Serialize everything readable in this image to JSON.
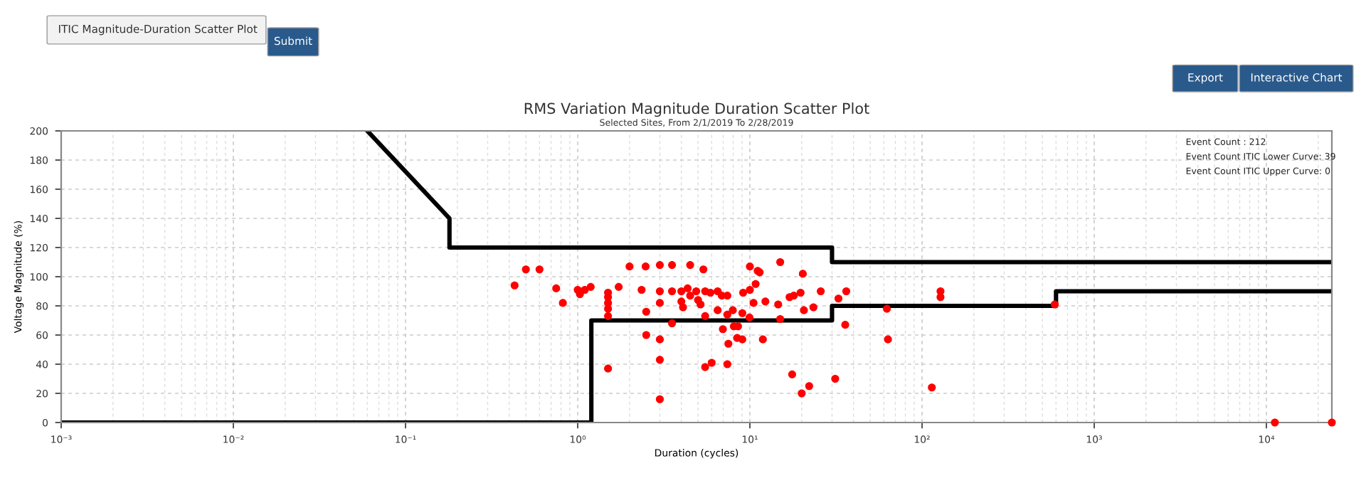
{
  "chart_data": {
    "type": "scatter",
    "title": "RMS Variation Magnitude Duration Scatter Plot",
    "subtitle": "Selected Sites, From 2/1/2019 To 2/28/2019",
    "xlabel": "Duration (cycles)",
    "ylabel": "Voltage Magnitude (%)",
    "annotations": [
      "ITIC Magnitude-Duration Scatter Plot",
      "Submit",
      "Export",
      "Interactive Chart",
      "Event Count : 212",
      "Event Count ITIC Lower Curve: 39",
      "Event Count ITIC Upper Curve: 0"
    ],
    "log": "x",
    "xlim": [
      0.001,
      24000
    ],
    "ylim": [
      0,
      200
    ],
    "xticks": [
      {
        "value": 0.001,
        "label": "10⁻³"
      },
      {
        "value": 0.01,
        "label": "10⁻²"
      },
      {
        "value": 0.1,
        "label": "10⁻¹"
      },
      {
        "value": 1,
        "label": "10⁰"
      },
      {
        "value": 10,
        "label": "10¹"
      },
      {
        "value": 100,
        "label": "10²"
      },
      {
        "value": 1000,
        "label": "10³"
      },
      {
        "value": 10000,
        "label": "10⁴"
      }
    ],
    "yticks": [
      0,
      20,
      40,
      60,
      80,
      100,
      120,
      140,
      160,
      180,
      200
    ],
    "grid": true,
    "series": [
      {
        "color": "#ff0000",
        "marker": "circle",
        "x": [
          0.43,
          0.5,
          0.6,
          0.75,
          0.82,
          1.0,
          1.03,
          1.1,
          1.19,
          1.5,
          1.5,
          1.5,
          1.5,
          1.5,
          1.5,
          1.73,
          2.0,
          2.35,
          2.48,
          2.5,
          2.5,
          3.0,
          3.0,
          3.0,
          3.0,
          3.0,
          3.0,
          3.53,
          3.53,
          3.53,
          4.0,
          4.0,
          4.09,
          4.35,
          4.5,
          4.5,
          4.88,
          5.0,
          5.17,
          5.37,
          5.5,
          5.5,
          5.5,
          6.0,
          5.9,
          6.5,
          6.5,
          6.87,
          6.97,
          7.4,
          7.4,
          7.4,
          7.5,
          7.96,
          8.07,
          8.53,
          8.43,
          9.04,
          9.04,
          9.14,
          9.95,
          10,
          10,
          10.5,
          10.8,
          11.1,
          11.4,
          11.9,
          12.3,
          14.6,
          15,
          15,
          17,
          17.6,
          18,
          19.7,
          20.3,
          20,
          20.6,
          22.1,
          23.4,
          25.8,
          31.3,
          32.7,
          35.8,
          36.3,
          62.5,
          63.4,
          114,
          128,
          128,
          590,
          11200,
          24000
        ],
        "values": [
          94,
          105,
          105,
          92,
          82,
          91,
          88,
          91,
          93,
          89,
          86,
          82,
          78,
          73,
          37,
          93,
          107,
          91,
          107,
          76,
          60,
          108,
          90,
          82,
          57,
          43,
          16,
          108,
          90,
          68,
          90,
          83,
          79,
          92,
          108,
          87,
          90,
          84,
          81,
          105,
          73,
          90,
          38,
          41,
          89,
          90,
          77,
          87,
          64,
          87,
          74,
          40,
          54,
          77,
          66,
          66,
          58,
          57,
          75,
          89,
          72,
          107,
          91,
          82,
          95,
          104,
          103,
          57,
          83,
          81,
          110,
          71,
          86,
          33,
          87,
          89,
          102,
          20,
          77,
          25,
          79,
          90,
          30,
          85,
          67,
          90,
          78,
          57,
          24,
          90,
          86,
          81,
          0,
          0
        ]
      },
      {
        "type": "line",
        "color": "#000000",
        "marker": "none",
        "line_style": "solid",
        "x": [
          0.06,
          0.18,
          0.18,
          30,
          30,
          24000
        ],
        "values": [
          200,
          140,
          120,
          120,
          110,
          110
        ]
      },
      {
        "type": "line",
        "color": "#000000",
        "marker": "none",
        "line_style": "solid",
        "x": [
          0.001,
          1.2,
          1.2,
          30,
          30,
          600,
          600,
          24000
        ],
        "values": [
          0,
          0,
          70,
          70,
          80,
          80,
          90,
          90
        ]
      }
    ]
  }
}
